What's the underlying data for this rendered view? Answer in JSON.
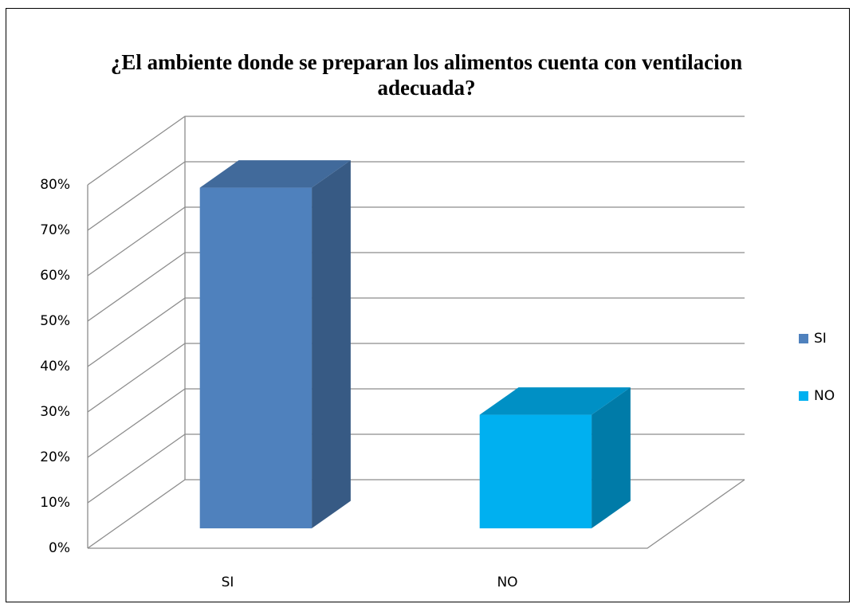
{
  "chart_data": {
    "type": "bar3d",
    "title": "¿El ambiente donde se preparan los alimentos cuenta con ventilacion adecuada?",
    "categories": [
      "SI",
      "NO"
    ],
    "values": [
      75,
      25
    ],
    "colors": [
      "#4f81bd",
      "#00b0f0"
    ],
    "ylim": [
      0,
      80
    ],
    "yticks": [
      {
        "value": 0,
        "label": "0%"
      },
      {
        "value": 10,
        "label": "10%"
      },
      {
        "value": 20,
        "label": "20%"
      },
      {
        "value": 30,
        "label": "30%"
      },
      {
        "value": 40,
        "label": "40%"
      },
      {
        "value": 50,
        "label": "50%"
      },
      {
        "value": 60,
        "label": "60%"
      },
      {
        "value": 70,
        "label": "70%"
      },
      {
        "value": 80,
        "label": "80%"
      }
    ],
    "grid": true,
    "legend": "right"
  }
}
